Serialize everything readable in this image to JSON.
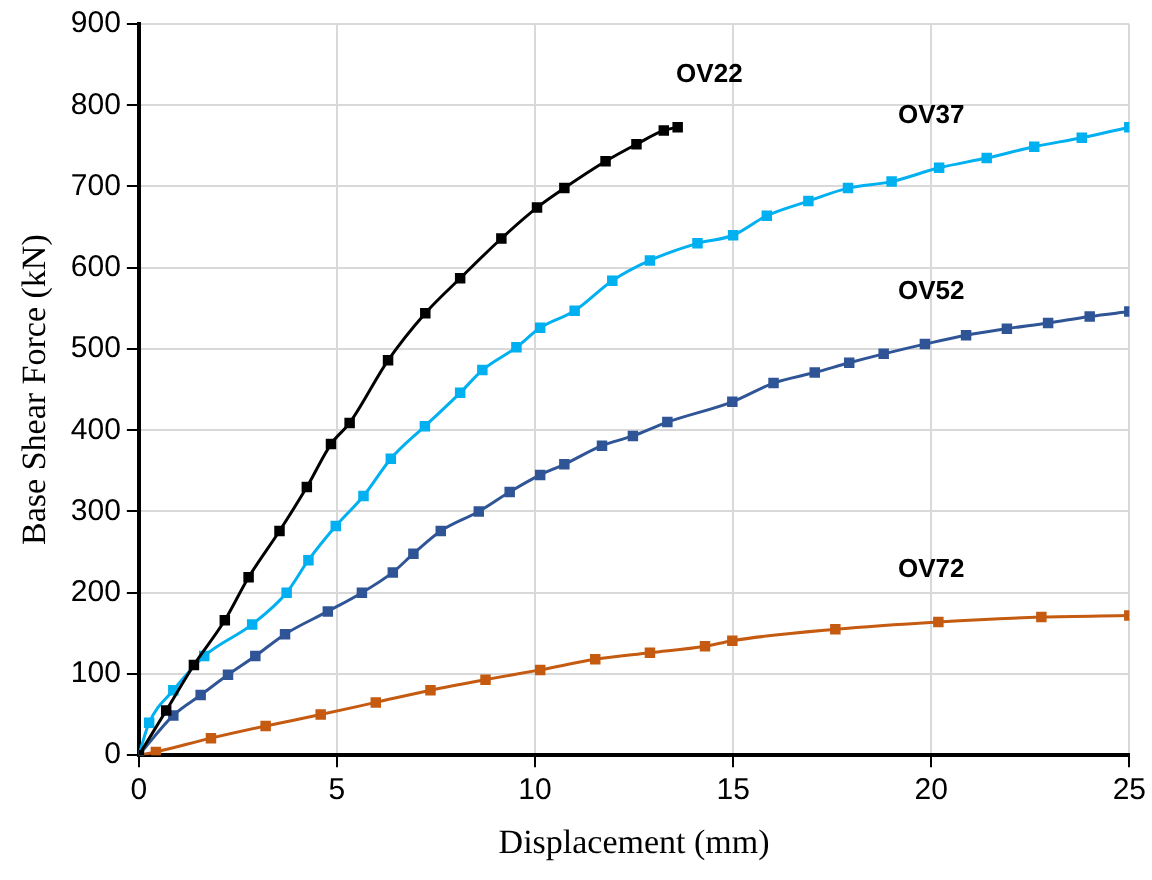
{
  "chart_data": {
    "type": "line",
    "xlabel": "Displacement (mm)",
    "ylabel": "Base Shear Force (kN)",
    "xlim": [
      0,
      25
    ],
    "xticks": [
      0,
      5,
      10,
      15,
      20,
      25
    ],
    "ylim": [
      0,
      900
    ],
    "yticks": [
      0,
      100,
      200,
      300,
      400,
      500,
      600,
      700,
      800,
      900
    ],
    "grid": true,
    "legend": false,
    "marker": "square",
    "line_style": "solid",
    "series": [
      {
        "name": "OV22",
        "color": "#000000",
        "x": [
          0,
          0.69,
          1.39,
          2.17,
          2.77,
          3.55,
          4.24,
          4.85,
          5.32,
          6.29,
          7.23,
          8.11,
          9.15,
          10.05,
          10.74,
          11.78,
          12.56,
          13.25,
          13.6
        ],
        "values": [
          0,
          55,
          111,
          166,
          219,
          276,
          330,
          383,
          409,
          486,
          544,
          587,
          636,
          674,
          698,
          731,
          752,
          769,
          773
        ]
      },
      {
        "name": "OV37",
        "color": "#00b0f0",
        "x": [
          0,
          0.26,
          0.87,
          1.65,
          2.86,
          3.73,
          4.28,
          4.97,
          5.67,
          6.36,
          7.22,
          8.11,
          8.67,
          9.53,
          10.13,
          11.0,
          11.95,
          12.9,
          14.1,
          15.0,
          15.85,
          16.9,
          17.9,
          19.0,
          20.2,
          21.4,
          22.6,
          23.8,
          25.0
        ],
        "values": [
          0,
          40,
          80,
          122,
          161,
          200,
          240,
          282,
          319,
          365,
          405,
          446,
          474,
          502,
          526,
          547,
          584,
          609,
          630,
          640,
          664,
          682,
          698,
          706,
          723,
          735,
          749,
          760,
          773
        ]
      },
      {
        "name": "OV52",
        "color": "#2f5597",
        "x": [
          0,
          0.87,
          1.56,
          2.25,
          2.94,
          3.69,
          4.77,
          5.63,
          6.41,
          6.93,
          7.62,
          8.58,
          9.36,
          10.13,
          10.74,
          11.69,
          12.47,
          13.34,
          14.98,
          16.02,
          17.06,
          17.93,
          18.8,
          19.84,
          20.88,
          21.91,
          22.95,
          24.0,
          25.0
        ],
        "values": [
          0,
          49,
          74,
          99,
          122,
          149,
          177,
          200,
          225,
          248,
          276,
          300,
          324,
          345,
          358,
          381,
          393,
          410,
          435,
          458,
          471,
          483,
          494,
          506,
          517,
          525,
          532,
          540,
          546
        ]
      },
      {
        "name": "OV72",
        "color": "#c55a11",
        "x": [
          0,
          0.43,
          1.82,
          3.2,
          4.59,
          5.98,
          7.36,
          8.75,
          10.13,
          11.52,
          12.9,
          14.29,
          14.98,
          17.58,
          20.18,
          22.78,
          25.0
        ],
        "values": [
          0,
          4,
          21,
          36,
          50,
          65,
          80,
          93,
          105,
          118,
          126,
          134,
          141,
          155,
          164,
          170,
          172
        ]
      }
    ]
  }
}
